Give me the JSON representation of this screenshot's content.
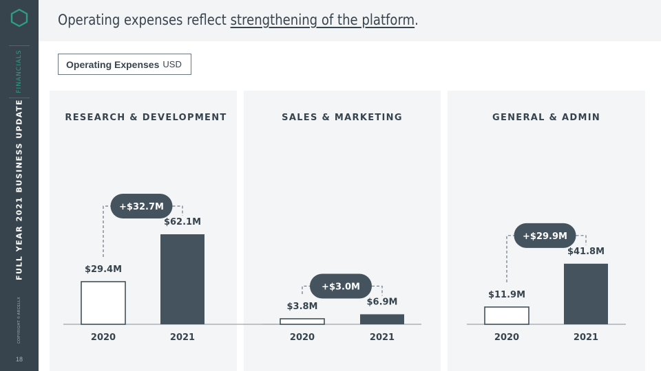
{
  "header": {
    "headline_plain": "Operating expenses reflect ",
    "headline_underlined": "strengthening of the platform",
    "headline_end": "."
  },
  "sidebar": {
    "section_label": "FINANCIALS",
    "deck_title": "FULL YEAR 2021 BUSINESS UPDATE",
    "copyright": "COPYRIGHT © ARCELLX",
    "page_number": "18",
    "logo_icon": "hexagon-logo-icon"
  },
  "tag": {
    "label": "Operating Expenses",
    "unit": "USD"
  },
  "colors": {
    "bar_2021": "#45535e",
    "accent": "#2f9d86",
    "text": "#37444e",
    "panel_bg": "#f3f5f6"
  },
  "chart_data": [
    {
      "type": "bar",
      "title": "RESEARCH & DEVELOPMENT",
      "categories": [
        "2020",
        "2021"
      ],
      "values": [
        29.4,
        62.1
      ],
      "value_labels": [
        "$29.4M",
        "$62.1M"
      ],
      "change_label": "+$32.7M",
      "unit": "USD millions",
      "ylim": [
        0,
        70
      ]
    },
    {
      "type": "bar",
      "title": "SALES & MARKETING",
      "categories": [
        "2020",
        "2021"
      ],
      "values": [
        3.8,
        6.9
      ],
      "value_labels": [
        "$3.8M",
        "$6.9M"
      ],
      "change_label": "+$3.0M",
      "unit": "USD millions",
      "ylim": [
        0,
        70
      ]
    },
    {
      "type": "bar",
      "title": "GENERAL & ADMIN",
      "categories": [
        "2020",
        "2021"
      ],
      "values": [
        11.9,
        41.8
      ],
      "value_labels": [
        "$11.9M",
        "$41.8M"
      ],
      "change_label": "+$29.9M",
      "unit": "USD millions",
      "ylim": [
        0,
        70
      ]
    }
  ]
}
